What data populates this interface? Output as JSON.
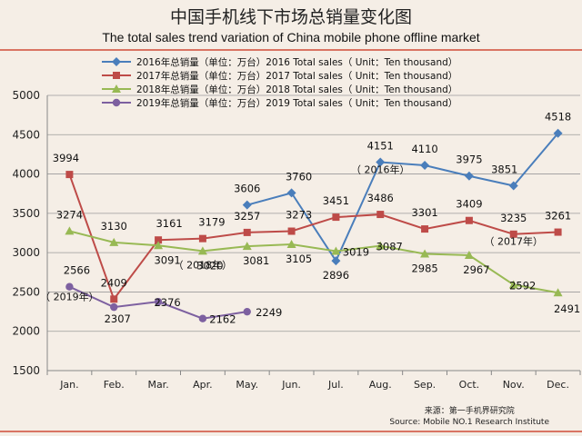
{
  "title_zh": "中国手机线下市场总销量变化图",
  "title_en": "The total sales trend variation of China mobile phone offline market",
  "source_zh": "来源：第一手机界研究院",
  "source_en": "Source: Mobile NO.1 Research Institute",
  "chart_data": {
    "type": "line",
    "categories": [
      "Jan.",
      "Feb.",
      "Mar.",
      "Apr.",
      "May.",
      "Jun.",
      "Jul.",
      "Aug.",
      "Sep.",
      "Oct.",
      "Nov.",
      "Dec."
    ],
    "ylim": [
      1500,
      5000
    ],
    "yticks": [
      1500,
      2000,
      2500,
      3000,
      3500,
      4000,
      4500,
      5000
    ],
    "grid": true,
    "legend_position": "top",
    "series": [
      {
        "name": "2016年总销量（单位：万台）2016 Total sales（ Unit：Ten thousand）",
        "color": "#4a7ebb",
        "marker": "diamond",
        "values": [
          null,
          null,
          null,
          null,
          3606,
          3760,
          2896,
          4151,
          4110,
          3975,
          3851,
          4518
        ]
      },
      {
        "name": "2017年总销量（单位：万台）2017 Total sales（ Unit：Ten thousand）",
        "color": "#be4b48",
        "marker": "square",
        "values": [
          3994,
          2409,
          3161,
          3179,
          3257,
          3273,
          3451,
          3486,
          3301,
          3409,
          3235,
          3261
        ]
      },
      {
        "name": "2018年总销量（单位：万台）2018 Total sales（ Unit：Ten thousand）",
        "color": "#98b954",
        "marker": "triangle",
        "values": [
          3274,
          3130,
          3091,
          3020,
          3081,
          3105,
          3019,
          3087,
          2985,
          2967,
          2592,
          2491
        ]
      },
      {
        "name": "2019年总销量（单位：万台）2019 Total sales（ Unit：Ten thousand）",
        "color": "#7d60a0",
        "marker": "circle",
        "values": [
          2566,
          2307,
          2376,
          2162,
          2249,
          null,
          null,
          null,
          null,
          null,
          null,
          null
        ]
      }
    ],
    "annotations": [
      {
        "text": "（ 2016年）",
        "x": "Aug.",
        "y": 4010
      },
      {
        "text": "（ 2017年）",
        "x": "Nov.",
        "y": 3100
      },
      {
        "text": "（ 2018年）",
        "x": "Apr.",
        "y": 2800
      },
      {
        "text": "（ 2019年）",
        "x": "Jan.",
        "y": 2395
      }
    ]
  }
}
